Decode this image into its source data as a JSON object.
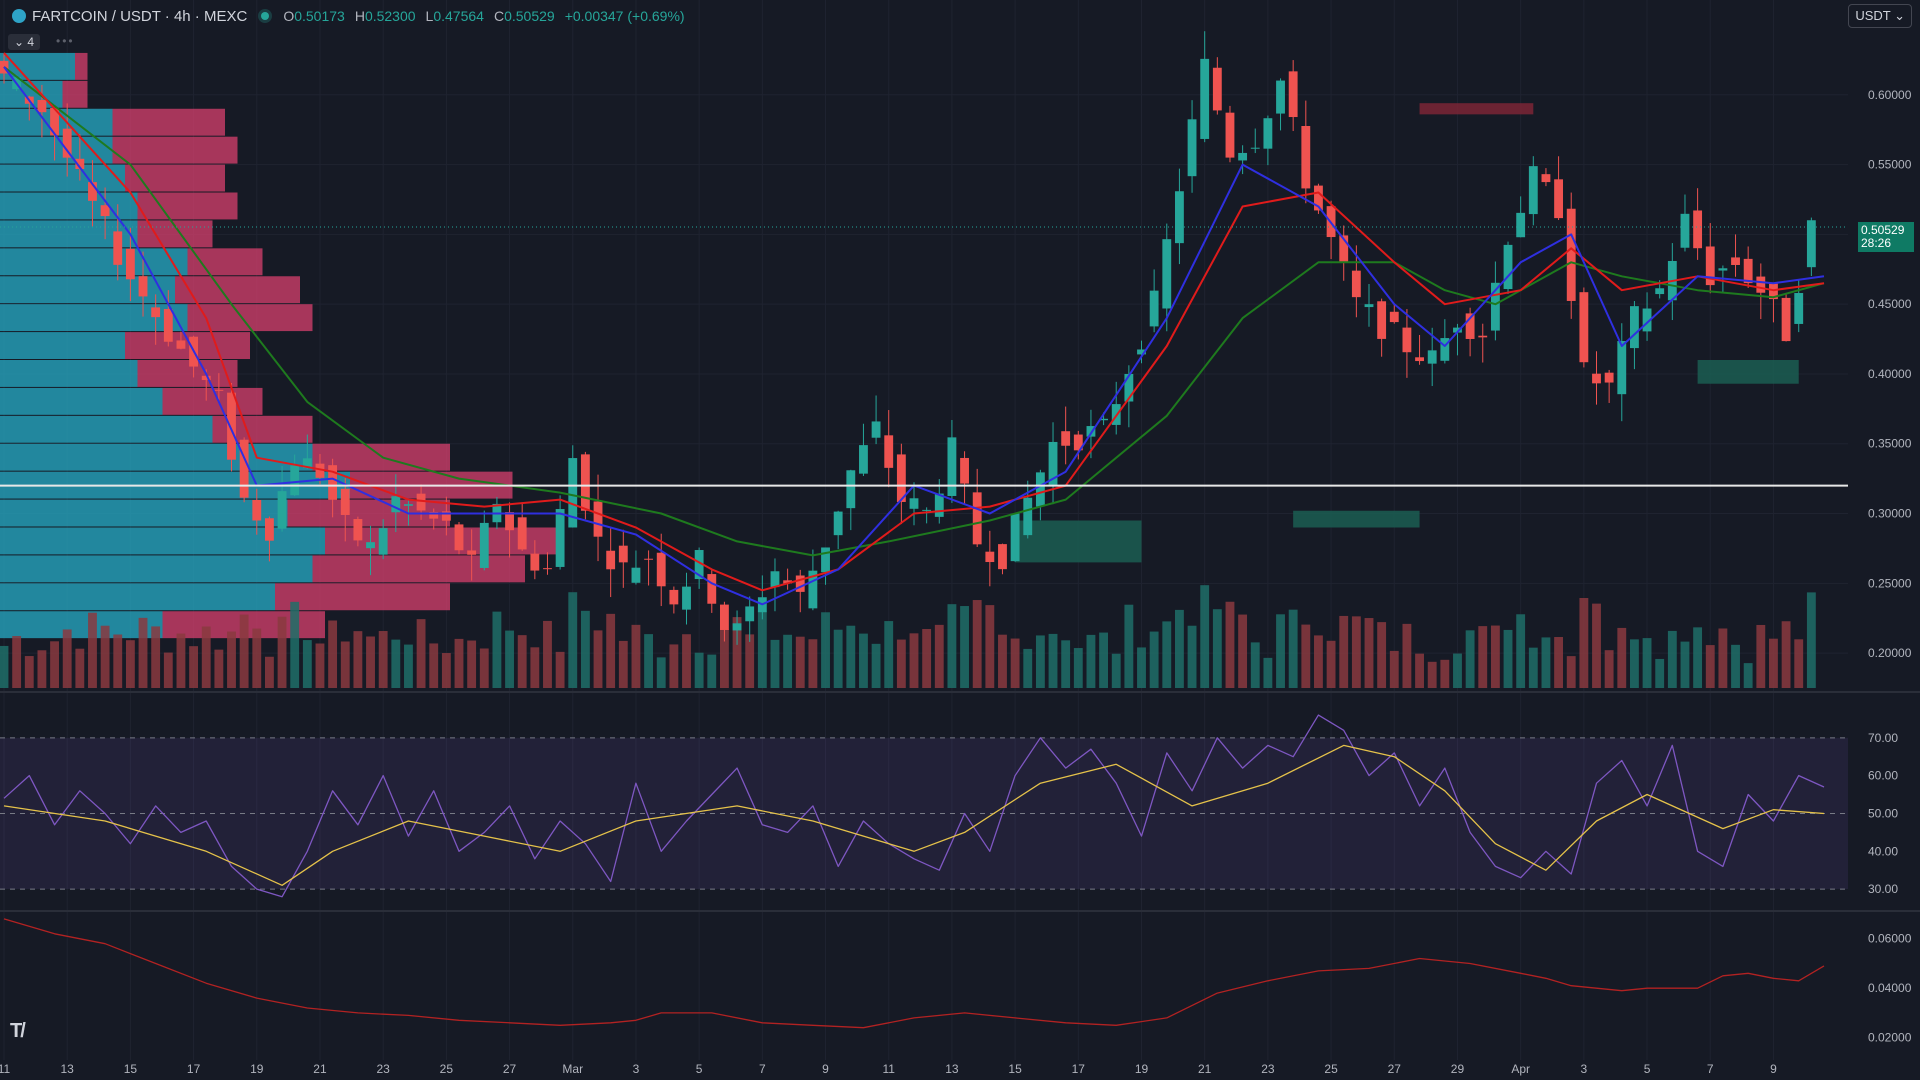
{
  "header": {
    "symbol": "FARTCOIN / USDT · 4h · MEXC",
    "open_label": "O",
    "open": "0.50173",
    "high_label": "H",
    "high": "0.52300",
    "low_label": "L",
    "low": "0.47564",
    "close_label": "C",
    "close": "0.50529",
    "change": "+0.00347 (+0.69%)"
  },
  "currency_button": "USDT",
  "legend_count": "4",
  "price_label": {
    "value": "0.50529",
    "countdown": "28:26"
  },
  "colors": {
    "background": "#161a25",
    "up": "#26a69a",
    "down": "#ef5350",
    "ema_fast": "#2f2fe0",
    "ema_mid": "#e01b1b",
    "ema_slow": "#1e7a1e",
    "rsi": "#7e57c2",
    "rsi_ma": "#e5c24a",
    "lower_line": "#b22222",
    "vp_up": "#26a7c0",
    "vp_down": "#d8406e"
  },
  "chart_data": [
    {
      "type": "candlestick",
      "title": "FARTCOIN / USDT · 4h · MEXC",
      "ylim": [
        0.175,
        0.645
      ],
      "y_ticks": [
        "0.60000",
        "0.55000",
        "0.50000",
        "0.45000",
        "0.40000",
        "0.35000",
        "0.30000",
        "0.25000",
        "0.20000"
      ],
      "y_tick_values": [
        0.6,
        0.55,
        0.5,
        0.45,
        0.4,
        0.35,
        0.3,
        0.25,
        0.2
      ],
      "x_ticks": [
        "11",
        "13",
        "15",
        "17",
        "19",
        "21",
        "23",
        "25",
        "27",
        "Mar",
        "3",
        "5",
        "7",
        "9",
        "11",
        "13",
        "15",
        "17",
        "19",
        "21",
        "23",
        "25",
        "27",
        "29",
        "Apr",
        "3",
        "5",
        "7",
        "9"
      ],
      "price_path": [
        [
          0,
          0.62
        ],
        [
          4,
          0.59
        ],
        [
          8,
          0.52
        ],
        [
          11,
          0.47
        ],
        [
          14,
          0.43
        ],
        [
          18,
          0.38
        ],
        [
          20,
          0.31
        ],
        [
          22,
          0.29
        ],
        [
          24,
          0.34
        ],
        [
          26,
          0.33
        ],
        [
          28,
          0.29
        ],
        [
          30,
          0.275
        ],
        [
          32,
          0.31
        ],
        [
          34,
          0.3
        ],
        [
          36,
          0.29
        ],
        [
          38,
          0.262
        ],
        [
          40,
          0.31
        ],
        [
          42,
          0.272
        ],
        [
          44,
          0.26
        ],
        [
          46,
          0.34
        ],
        [
          48,
          0.28
        ],
        [
          50,
          0.26
        ],
        [
          52,
          0.27
        ],
        [
          54,
          0.24
        ],
        [
          56,
          0.265
        ],
        [
          58,
          0.22
        ],
        [
          59,
          0.215
        ],
        [
          62,
          0.26
        ],
        [
          64,
          0.24
        ],
        [
          66,
          0.28
        ],
        [
          68,
          0.33
        ],
        [
          70,
          0.36
        ],
        [
          72,
          0.31
        ],
        [
          74,
          0.3
        ],
        [
          76,
          0.345
        ],
        [
          78,
          0.28
        ],
        [
          80,
          0.27
        ],
        [
          84,
          0.35
        ],
        [
          88,
          0.36
        ],
        [
          92,
          0.45
        ],
        [
          96,
          0.62
        ],
        [
          98,
          0.56
        ],
        [
          100,
          0.57
        ],
        [
          102,
          0.61
        ],
        [
          104,
          0.54
        ],
        [
          108,
          0.45
        ],
        [
          112,
          0.42
        ],
        [
          114,
          0.41
        ],
        [
          116,
          0.44
        ],
        [
          118,
          0.43
        ],
        [
          120,
          0.5
        ],
        [
          122,
          0.54
        ],
        [
          124,
          0.52
        ],
        [
          126,
          0.4
        ],
        [
          128,
          0.39
        ],
        [
          130,
          0.44
        ],
        [
          132,
          0.46
        ],
        [
          134,
          0.51
        ],
        [
          136,
          0.47
        ],
        [
          138,
          0.48
        ],
        [
          140,
          0.46
        ],
        [
          142,
          0.43
        ],
        [
          144,
          0.505
        ]
      ],
      "ema_fast": [
        [
          0,
          0.62
        ],
        [
          10,
          0.5
        ],
        [
          16,
          0.4
        ],
        [
          20,
          0.32
        ],
        [
          26,
          0.325
        ],
        [
          32,
          0.3
        ],
        [
          38,
          0.3
        ],
        [
          44,
          0.3
        ],
        [
          50,
          0.285
        ],
        [
          56,
          0.25
        ],
        [
          60,
          0.235
        ],
        [
          66,
          0.26
        ],
        [
          72,
          0.32
        ],
        [
          78,
          0.3
        ],
        [
          84,
          0.33
        ],
        [
          92,
          0.44
        ],
        [
          98,
          0.55
        ],
        [
          104,
          0.52
        ],
        [
          110,
          0.45
        ],
        [
          114,
          0.42
        ],
        [
          120,
          0.48
        ],
        [
          124,
          0.5
        ],
        [
          128,
          0.42
        ],
        [
          134,
          0.47
        ],
        [
          140,
          0.465
        ],
        [
          144,
          0.47
        ]
      ],
      "ema_mid": [
        [
          0,
          0.63
        ],
        [
          10,
          0.53
        ],
        [
          16,
          0.44
        ],
        [
          20,
          0.34
        ],
        [
          26,
          0.33
        ],
        [
          32,
          0.31
        ],
        [
          38,
          0.305
        ],
        [
          44,
          0.31
        ],
        [
          50,
          0.29
        ],
        [
          56,
          0.26
        ],
        [
          60,
          0.245
        ],
        [
          66,
          0.26
        ],
        [
          72,
          0.3
        ],
        [
          78,
          0.305
        ],
        [
          84,
          0.32
        ],
        [
          92,
          0.42
        ],
        [
          98,
          0.52
        ],
        [
          104,
          0.53
        ],
        [
          110,
          0.48
        ],
        [
          114,
          0.45
        ],
        [
          120,
          0.46
        ],
        [
          124,
          0.49
        ],
        [
          128,
          0.46
        ],
        [
          134,
          0.47
        ],
        [
          140,
          0.46
        ],
        [
          144,
          0.465
        ]
      ],
      "ema_slow": [
        [
          0,
          0.62
        ],
        [
          10,
          0.55
        ],
        [
          18,
          0.45
        ],
        [
          24,
          0.38
        ],
        [
          30,
          0.34
        ],
        [
          36,
          0.325
        ],
        [
          44,
          0.315
        ],
        [
          52,
          0.3
        ],
        [
          58,
          0.28
        ],
        [
          64,
          0.27
        ],
        [
          70,
          0.28
        ],
        [
          78,
          0.295
        ],
        [
          84,
          0.31
        ],
        [
          92,
          0.37
        ],
        [
          98,
          0.44
        ],
        [
          104,
          0.48
        ],
        [
          110,
          0.48
        ],
        [
          114,
          0.46
        ],
        [
          118,
          0.45
        ],
        [
          124,
          0.48
        ],
        [
          128,
          0.47
        ],
        [
          134,
          0.46
        ],
        [
          140,
          0.455
        ],
        [
          144,
          0.465
        ]
      ],
      "horizontal_line": 0.32,
      "current_price": 0.50529,
      "zones": [
        {
          "kind": "resistance",
          "x0": 112,
          "x1": 121,
          "y0": 0.586,
          "y1": 0.594
        },
        {
          "kind": "support",
          "x0": 102,
          "x1": 112,
          "y0": 0.29,
          "y1": 0.302
        },
        {
          "kind": "support",
          "x0": 80,
          "x1": 90,
          "y0": 0.265,
          "y1": 0.295
        },
        {
          "kind": "support",
          "x0": 134,
          "x1": 142,
          "y0": 0.393,
          "y1": 0.41
        }
      ],
      "volume_profile": {
        "row_prices": [
          0.62,
          0.6,
          0.58,
          0.56,
          0.54,
          0.52,
          0.5,
          0.48,
          0.46,
          0.44,
          0.42,
          0.4,
          0.38,
          0.36,
          0.34,
          0.32,
          0.3,
          0.28,
          0.26,
          0.24,
          0.22
        ],
        "up": [
          6,
          5,
          9,
          9,
          10,
          11,
          11,
          15,
          14,
          15,
          10,
          11,
          13,
          17,
          25,
          28,
          23,
          26,
          25,
          22,
          13
        ],
        "down": [
          1,
          2,
          9,
          10,
          8,
          8,
          6,
          6,
          10,
          10,
          10,
          8,
          8,
          8,
          11,
          13,
          13,
          19,
          17,
          14,
          13
        ]
      }
    },
    {
      "type": "line",
      "title": "",
      "ylim": [
        25,
        80
      ],
      "y_ticks": [
        "70.00",
        "60.00",
        "50.00",
        "40.00",
        "30.00"
      ],
      "y_tick_values": [
        70,
        60,
        50,
        40,
        30
      ],
      "bands": [
        30,
        50,
        70
      ],
      "rsi_ma": [
        [
          0,
          52
        ],
        [
          8,
          48
        ],
        [
          16,
          40
        ],
        [
          22,
          31
        ],
        [
          26,
          40
        ],
        [
          32,
          48
        ],
        [
          38,
          44
        ],
        [
          44,
          40
        ],
        [
          50,
          48
        ],
        [
          58,
          52
        ],
        [
          64,
          48
        ],
        [
          72,
          40
        ],
        [
          76,
          45
        ],
        [
          82,
          58
        ],
        [
          88,
          63
        ],
        [
          94,
          52
        ],
        [
          100,
          58
        ],
        [
          106,
          68
        ],
        [
          110,
          65
        ],
        [
          114,
          56
        ],
        [
          118,
          42
        ],
        [
          122,
          35
        ],
        [
          126,
          48
        ],
        [
          130,
          55
        ],
        [
          136,
          46
        ],
        [
          140,
          51
        ],
        [
          144,
          50
        ]
      ],
      "rsi": [
        [
          0,
          54
        ],
        [
          2,
          60
        ],
        [
          4,
          47
        ],
        [
          6,
          56
        ],
        [
          8,
          50
        ],
        [
          10,
          42
        ],
        [
          12,
          52
        ],
        [
          14,
          45
        ],
        [
          16,
          48
        ],
        [
          18,
          36
        ],
        [
          20,
          30
        ],
        [
          22,
          28
        ],
        [
          24,
          40
        ],
        [
          26,
          56
        ],
        [
          28,
          47
        ],
        [
          30,
          60
        ],
        [
          32,
          44
        ],
        [
          34,
          56
        ],
        [
          36,
          40
        ],
        [
          38,
          45
        ],
        [
          40,
          52
        ],
        [
          42,
          38
        ],
        [
          44,
          48
        ],
        [
          46,
          42
        ],
        [
          48,
          32
        ],
        [
          50,
          58
        ],
        [
          52,
          40
        ],
        [
          54,
          48
        ],
        [
          56,
          55
        ],
        [
          58,
          62
        ],
        [
          60,
          47
        ],
        [
          62,
          45
        ],
        [
          64,
          52
        ],
        [
          66,
          36
        ],
        [
          68,
          48
        ],
        [
          70,
          42
        ],
        [
          72,
          38
        ],
        [
          74,
          35
        ],
        [
          76,
          50
        ],
        [
          78,
          40
        ],
        [
          80,
          60
        ],
        [
          82,
          70
        ],
        [
          84,
          62
        ],
        [
          86,
          67
        ],
        [
          88,
          58
        ],
        [
          90,
          44
        ],
        [
          92,
          66
        ],
        [
          94,
          56
        ],
        [
          96,
          70
        ],
        [
          98,
          62
        ],
        [
          100,
          68
        ],
        [
          102,
          65
        ],
        [
          104,
          76
        ],
        [
          106,
          72
        ],
        [
          108,
          60
        ],
        [
          110,
          66
        ],
        [
          112,
          52
        ],
        [
          114,
          62
        ],
        [
          116,
          45
        ],
        [
          118,
          36
        ],
        [
          120,
          33
        ],
        [
          122,
          40
        ],
        [
          124,
          34
        ],
        [
          126,
          58
        ],
        [
          128,
          64
        ],
        [
          130,
          52
        ],
        [
          132,
          68
        ],
        [
          134,
          40
        ],
        [
          136,
          36
        ],
        [
          138,
          55
        ],
        [
          140,
          48
        ],
        [
          142,
          60
        ],
        [
          144,
          57
        ]
      ]
    },
    {
      "type": "line",
      "title": "",
      "ylim": [
        0.015,
        0.07
      ],
      "y_ticks": [
        "0.06000",
        "0.04000",
        "0.02000"
      ],
      "y_tick_values": [
        0.06,
        0.04,
        0.02
      ],
      "values": [
        [
          0,
          0.068
        ],
        [
          4,
          0.062
        ],
        [
          8,
          0.058
        ],
        [
          12,
          0.05
        ],
        [
          16,
          0.042
        ],
        [
          20,
          0.036
        ],
        [
          24,
          0.032
        ],
        [
          28,
          0.03
        ],
        [
          32,
          0.029
        ],
        [
          36,
          0.027
        ],
        [
          40,
          0.026
        ],
        [
          44,
          0.025
        ],
        [
          48,
          0.026
        ],
        [
          50,
          0.027
        ],
        [
          52,
          0.03
        ],
        [
          56,
          0.03
        ],
        [
          60,
          0.026
        ],
        [
          64,
          0.025
        ],
        [
          68,
          0.024
        ],
        [
          72,
          0.028
        ],
        [
          76,
          0.03
        ],
        [
          80,
          0.028
        ],
        [
          84,
          0.026
        ],
        [
          88,
          0.025
        ],
        [
          92,
          0.028
        ],
        [
          96,
          0.038
        ],
        [
          100,
          0.043
        ],
        [
          104,
          0.047
        ],
        [
          108,
          0.048
        ],
        [
          112,
          0.052
        ],
        [
          116,
          0.05
        ],
        [
          120,
          0.046
        ],
        [
          122,
          0.044
        ],
        [
          124,
          0.041
        ],
        [
          128,
          0.039
        ],
        [
          130,
          0.04
        ],
        [
          134,
          0.04
        ],
        [
          136,
          0.045
        ],
        [
          138,
          0.046
        ],
        [
          140,
          0.044
        ],
        [
          142,
          0.043
        ],
        [
          144,
          0.049
        ]
      ]
    }
  ]
}
